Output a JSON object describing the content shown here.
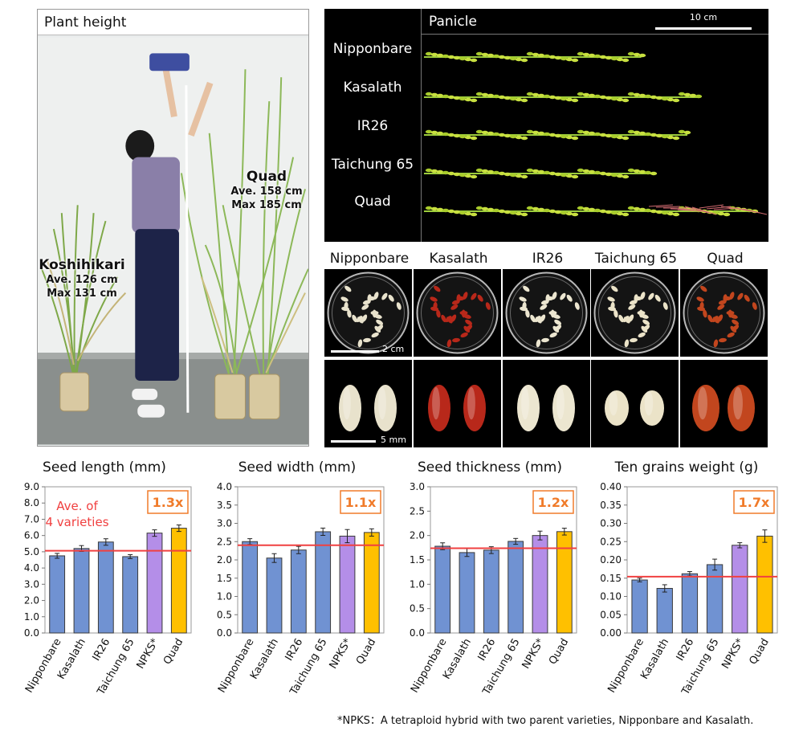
{
  "plant_height": {
    "header": "Plant height",
    "koshihikari": {
      "name": "Koshihikari",
      "ave": "Ave. 126 cm",
      "max": "Max 131 cm"
    },
    "quad": {
      "name": "Quad",
      "ave": "Ave. 158 cm",
      "max": "Max 185 cm"
    }
  },
  "panicle": {
    "header": "Panicle",
    "scale": "10 cm",
    "varieties": [
      "Nipponbare",
      "Kasalath",
      "IR26",
      "Taichung 65",
      "Quad"
    ],
    "relative_lengths": [
      0.66,
      0.84,
      0.8,
      0.7,
      1.0
    ]
  },
  "seeds": {
    "varieties": [
      "Nipponbare",
      "Kasalath",
      "IR26",
      "Taichung 65",
      "Quad"
    ],
    "seed_colors": [
      "#e8e2cc",
      "#b8281a",
      "#ece6d0",
      "#ebe3c8",
      "#c2461e"
    ],
    "scale_dish": "2 cm",
    "scale_grain": "5 mm"
  },
  "chart_data": [
    {
      "type": "bar",
      "title": "Seed length (mm)",
      "categories": [
        "Nipponbare",
        "Kasalath",
        "IR26",
        "Taichung 65",
        "NPKS*",
        "Quad"
      ],
      "values": [
        4.75,
        5.2,
        5.6,
        4.7,
        6.15,
        6.45
      ],
      "errors": [
        0.15,
        0.18,
        0.2,
        0.12,
        0.2,
        0.2
      ],
      "ylim": [
        0,
        9.0
      ],
      "yticks": [
        "0.0",
        "1.0",
        "2.0",
        "3.0",
        "4.0",
        "5.0",
        "6.0",
        "7.0",
        "8.0",
        "9.0"
      ],
      "average_line": 5.06,
      "average_label": [
        "Ave. of",
        "4 varieties"
      ],
      "ratio_label": "1.3x",
      "bar_colors": [
        "#7092d2",
        "#7092d2",
        "#7092d2",
        "#7092d2",
        "#b48ee8",
        "#ffc000"
      ]
    },
    {
      "type": "bar",
      "title": "Seed width (mm)",
      "categories": [
        "Nipponbare",
        "Kasalath",
        "IR26",
        "Taichung 65",
        "NPKS*",
        "Quad"
      ],
      "values": [
        2.5,
        2.05,
        2.27,
        2.77,
        2.65,
        2.75
      ],
      "errors": [
        0.08,
        0.12,
        0.1,
        0.1,
        0.18,
        0.1
      ],
      "ylim": [
        0,
        4.0
      ],
      "yticks": [
        "0.0",
        "0.5",
        "1.0",
        "1.5",
        "2.0",
        "2.5",
        "3.0",
        "3.5",
        "4.0"
      ],
      "average_line": 2.4,
      "ratio_label": "1.1x",
      "bar_colors": [
        "#7092d2",
        "#7092d2",
        "#7092d2",
        "#7092d2",
        "#b48ee8",
        "#ffc000"
      ]
    },
    {
      "type": "bar",
      "title": "Seed thickness (mm)",
      "categories": [
        "Nipponbare",
        "Kasalath",
        "IR26",
        "Taichung 65",
        "NPKS*",
        "Quad"
      ],
      "values": [
        1.78,
        1.65,
        1.7,
        1.88,
        2.0,
        2.08
      ],
      "errors": [
        0.07,
        0.08,
        0.07,
        0.06,
        0.09,
        0.07
      ],
      "ylim": [
        0,
        3.0
      ],
      "yticks": [
        "0.0",
        "0.5",
        "1.0",
        "1.5",
        "2.0",
        "2.5",
        "3.0"
      ],
      "average_line": 1.74,
      "ratio_label": "1.2x",
      "bar_colors": [
        "#7092d2",
        "#7092d2",
        "#7092d2",
        "#7092d2",
        "#b48ee8",
        "#ffc000"
      ]
    },
    {
      "type": "bar",
      "title": "Ten grains weight (g)",
      "categories": [
        "Nipponbare",
        "Kasalath",
        "IR26",
        "Taichung 65",
        "NPKS*",
        "Quad"
      ],
      "values": [
        0.145,
        0.122,
        0.162,
        0.187,
        0.24,
        0.265
      ],
      "errors": [
        0.005,
        0.01,
        0.006,
        0.015,
        0.007,
        0.017
      ],
      "ylim": [
        0,
        0.4
      ],
      "yticks": [
        "0.00",
        "0.05",
        "0.10",
        "0.15",
        "0.20",
        "0.25",
        "0.30",
        "0.35",
        "0.40"
      ],
      "average_line": 0.154,
      "ratio_label": "1.7x",
      "bar_colors": [
        "#7092d2",
        "#7092d2",
        "#7092d2",
        "#7092d2",
        "#b48ee8",
        "#ffc000"
      ]
    }
  ],
  "footnote": "*NPKS：A tetraploid hybrid with two parent varieties, Nipponbare and Kasalath.",
  "colors": {
    "average_line": "#f04040",
    "ratio_box": "#f07b2a",
    "bar_blue": "#7092d2",
    "bar_purple": "#b48ee8",
    "bar_gold": "#ffc000"
  }
}
